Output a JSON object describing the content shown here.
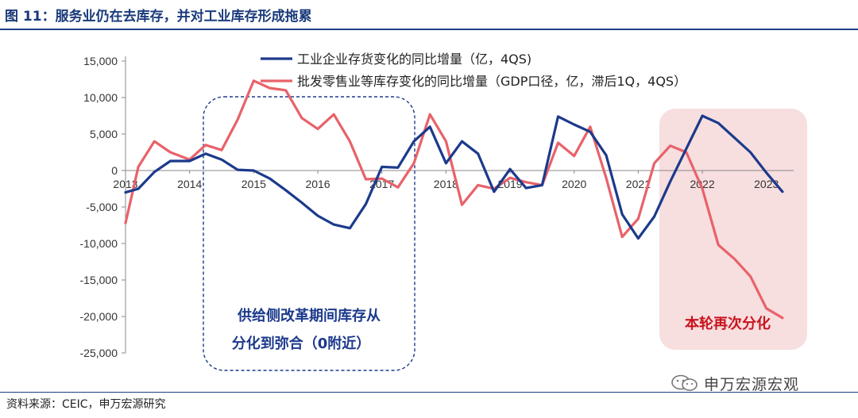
{
  "title": "图 11：服务业仍在去库存，并对工业库存形成拖累",
  "source": "资料来源：CEIC，申万宏源研究",
  "watermark": "申万宏源宏观",
  "colors": {
    "series_industrial": "#1c3a8c",
    "series_services": "#e8626a",
    "box_left_border": "#1c3a8c",
    "box_right_fill": "#f7dedf",
    "annotation_left": "#1c3a8c",
    "annotation_right": "#c8141e",
    "title": "#1a3a7a"
  },
  "annotations": {
    "left_box_line1": "供给侧改革期间库存从",
    "left_box_line2": "分化到弥合（0附近）",
    "right_box": "本轮再次分化"
  },
  "chart_data": {
    "type": "line",
    "title": "",
    "xlabel": "",
    "ylabel": "",
    "ylim": [
      -25000,
      15000
    ],
    "yticks": [
      15000,
      10000,
      5000,
      0,
      -5000,
      -10000,
      -15000,
      -20000,
      -25000
    ],
    "ytick_labels": [
      "15,000",
      "10,000",
      "5,000",
      "0",
      "-5,000",
      "-10,000",
      "-15,000",
      "-20,000",
      "-25,000"
    ],
    "xtick_labels": [
      "2013",
      "2014",
      "2015",
      "2016",
      "2017",
      "2018",
      "2019",
      "2020",
      "2021",
      "2022",
      "2023"
    ],
    "xlim": [
      2013.0,
      2023.4
    ],
    "legend": "top-center",
    "grid": false,
    "series": [
      {
        "name": "工业企业存货变化的同比增量（亿，4QS)",
        "color": "#1c3a8c",
        "x": [
          2013.0,
          2013.2,
          2013.45,
          2013.7,
          2014.0,
          2014.25,
          2014.5,
          2014.75,
          2015.0,
          2015.25,
          2015.5,
          2015.75,
          2016.0,
          2016.25,
          2016.5,
          2016.75,
          2017.0,
          2017.25,
          2017.5,
          2017.75,
          2018.0,
          2018.25,
          2018.5,
          2018.75,
          2019.0,
          2019.25,
          2019.5,
          2019.75,
          2020.0,
          2020.25,
          2020.5,
          2020.75,
          2021.0,
          2021.25,
          2021.5,
          2021.75,
          2022.0,
          2022.25,
          2022.5,
          2022.75,
          2023.0,
          2023.25
        ],
        "y": [
          -3000,
          -2500,
          -200,
          1300,
          1300,
          2300,
          1500,
          100,
          0,
          -1100,
          -2700,
          -4400,
          -6200,
          -7400,
          -7900,
          -4600,
          500,
          400,
          4000,
          6000,
          1000,
          4000,
          2300,
          -2900,
          200,
          -2400,
          -2000,
          7400,
          6300,
          5300,
          2100,
          -6000,
          -9300,
          -6300,
          -1500,
          3000,
          7500,
          6500,
          4500,
          2500,
          -300,
          -2900
        ]
      },
      {
        "name": "批发零售业等库存变化的同比增量（GDP口径，亿，滞后1Q，4QS）",
        "color": "#e8626a",
        "x": [
          2013.0,
          2013.2,
          2013.45,
          2013.7,
          2014.0,
          2014.25,
          2014.5,
          2014.75,
          2015.0,
          2015.25,
          2015.5,
          2015.75,
          2016.0,
          2016.25,
          2016.5,
          2016.75,
          2017.0,
          2017.25,
          2017.5,
          2017.75,
          2018.0,
          2018.25,
          2018.5,
          2018.75,
          2019.0,
          2019.25,
          2019.5,
          2019.75,
          2020.0,
          2020.25,
          2020.5,
          2020.75,
          2021.0,
          2021.25,
          2021.5,
          2021.75,
          2022.0,
          2022.25,
          2022.5,
          2022.75,
          2023.0,
          2023.25
        ],
        "y": [
          -7200,
          500,
          4000,
          2500,
          1500,
          3500,
          2800,
          7000,
          12300,
          11300,
          11000,
          7200,
          5700,
          7700,
          4000,
          -1200,
          -1100,
          -2300,
          1000,
          7700,
          4000,
          -4700,
          -2000,
          -2500,
          -1000,
          -1600,
          -2000,
          3800,
          2000,
          6000,
          -1000,
          -9100,
          -6600,
          1000,
          3400,
          2500,
          -2500,
          -10200,
          -12100,
          -14500,
          -18900,
          -20200
        ]
      }
    ]
  }
}
